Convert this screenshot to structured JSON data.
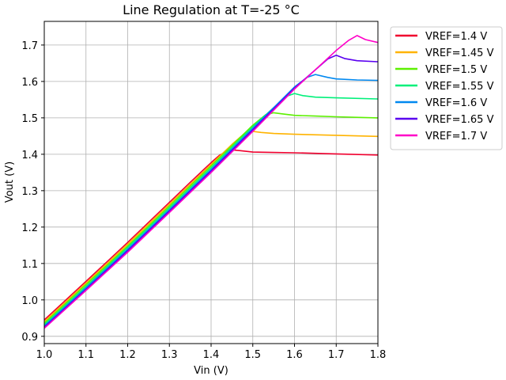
{
  "chart_data": {
    "type": "line",
    "title": "Line Regulation at T=-25 °C",
    "xlabel": "Vin (V)",
    "ylabel": "Vout (V)",
    "xlim": [
      1.0,
      1.8
    ],
    "ylim": [
      0.88,
      1.765
    ],
    "xticks": [
      1.0,
      1.1,
      1.2,
      1.3,
      1.4,
      1.5,
      1.6,
      1.7,
      1.8
    ],
    "yticks": [
      0.9,
      1.0,
      1.1,
      1.2,
      1.3,
      1.4,
      1.5,
      1.6,
      1.7
    ],
    "xtick_labels": [
      "1.0",
      "1.1",
      "1.2",
      "1.3",
      "1.4",
      "1.5",
      "1.6",
      "1.7",
      "1.8"
    ],
    "ytick_labels": [
      "0.9",
      "1.0",
      "1.1",
      "1.2",
      "1.3",
      "1.4",
      "1.5",
      "1.6",
      "1.7"
    ],
    "grid": true,
    "legend_position": "outside-top-right",
    "series": [
      {
        "name": "VREF=1.4 V",
        "color": "#f0002e",
        "x": [
          1.0,
          1.1,
          1.2,
          1.3,
          1.35,
          1.4,
          1.42,
          1.44,
          1.45,
          1.47,
          1.5,
          1.55,
          1.6,
          1.7,
          1.8
        ],
        "y": [
          0.945,
          1.051,
          1.158,
          1.268,
          1.323,
          1.377,
          1.397,
          1.41,
          1.412,
          1.41,
          1.406,
          1.405,
          1.404,
          1.401,
          1.398
        ]
      },
      {
        "name": "VREF=1.45 V",
        "color": "#ffb300",
        "x": [
          1.0,
          1.1,
          1.2,
          1.3,
          1.4,
          1.45,
          1.48,
          1.5,
          1.52,
          1.55,
          1.6,
          1.7,
          1.8
        ],
        "y": [
          0.94,
          1.046,
          1.153,
          1.263,
          1.372,
          1.427,
          1.457,
          1.463,
          1.46,
          1.457,
          1.455,
          1.452,
          1.449
        ]
      },
      {
        "name": "VREF=1.5 V",
        "color": "#5cf000",
        "x": [
          1.0,
          1.1,
          1.2,
          1.3,
          1.4,
          1.5,
          1.53,
          1.55,
          1.57,
          1.6,
          1.65,
          1.7,
          1.8
        ],
        "y": [
          0.936,
          1.042,
          1.148,
          1.258,
          1.368,
          1.48,
          1.508,
          1.514,
          1.511,
          1.507,
          1.505,
          1.503,
          1.5
        ]
      },
      {
        "name": "VREF=1.55 V",
        "color": "#00f07a",
        "x": [
          1.0,
          1.1,
          1.2,
          1.3,
          1.4,
          1.5,
          1.58,
          1.6,
          1.62,
          1.65,
          1.7,
          1.8
        ],
        "y": [
          0.932,
          1.037,
          1.144,
          1.253,
          1.363,
          1.476,
          1.559,
          1.567,
          1.561,
          1.557,
          1.555,
          1.552
        ]
      },
      {
        "name": "VREF=1.6 V",
        "color": "#0088f0",
        "x": [
          1.0,
          1.1,
          1.2,
          1.3,
          1.4,
          1.5,
          1.6,
          1.63,
          1.65,
          1.68,
          1.7,
          1.75,
          1.8
        ],
        "y": [
          0.928,
          1.033,
          1.139,
          1.248,
          1.358,
          1.471,
          1.585,
          1.611,
          1.619,
          1.611,
          1.607,
          1.604,
          1.603
        ]
      },
      {
        "name": "VREF=1.65 V",
        "color": "#5a00f0",
        "x": [
          1.0,
          1.1,
          1.2,
          1.3,
          1.4,
          1.5,
          1.6,
          1.68,
          1.7,
          1.72,
          1.75,
          1.8
        ],
        "y": [
          0.925,
          1.029,
          1.135,
          1.244,
          1.354,
          1.467,
          1.582,
          1.662,
          1.672,
          1.663,
          1.657,
          1.654
        ]
      },
      {
        "name": "VREF=1.7 V",
        "color": "#ff00c8",
        "x": [
          1.0,
          1.1,
          1.2,
          1.3,
          1.4,
          1.5,
          1.6,
          1.7,
          1.73,
          1.75,
          1.77,
          1.8
        ],
        "y": [
          0.922,
          1.026,
          1.131,
          1.24,
          1.35,
          1.463,
          1.579,
          1.685,
          1.713,
          1.726,
          1.715,
          1.707
        ]
      }
    ]
  }
}
